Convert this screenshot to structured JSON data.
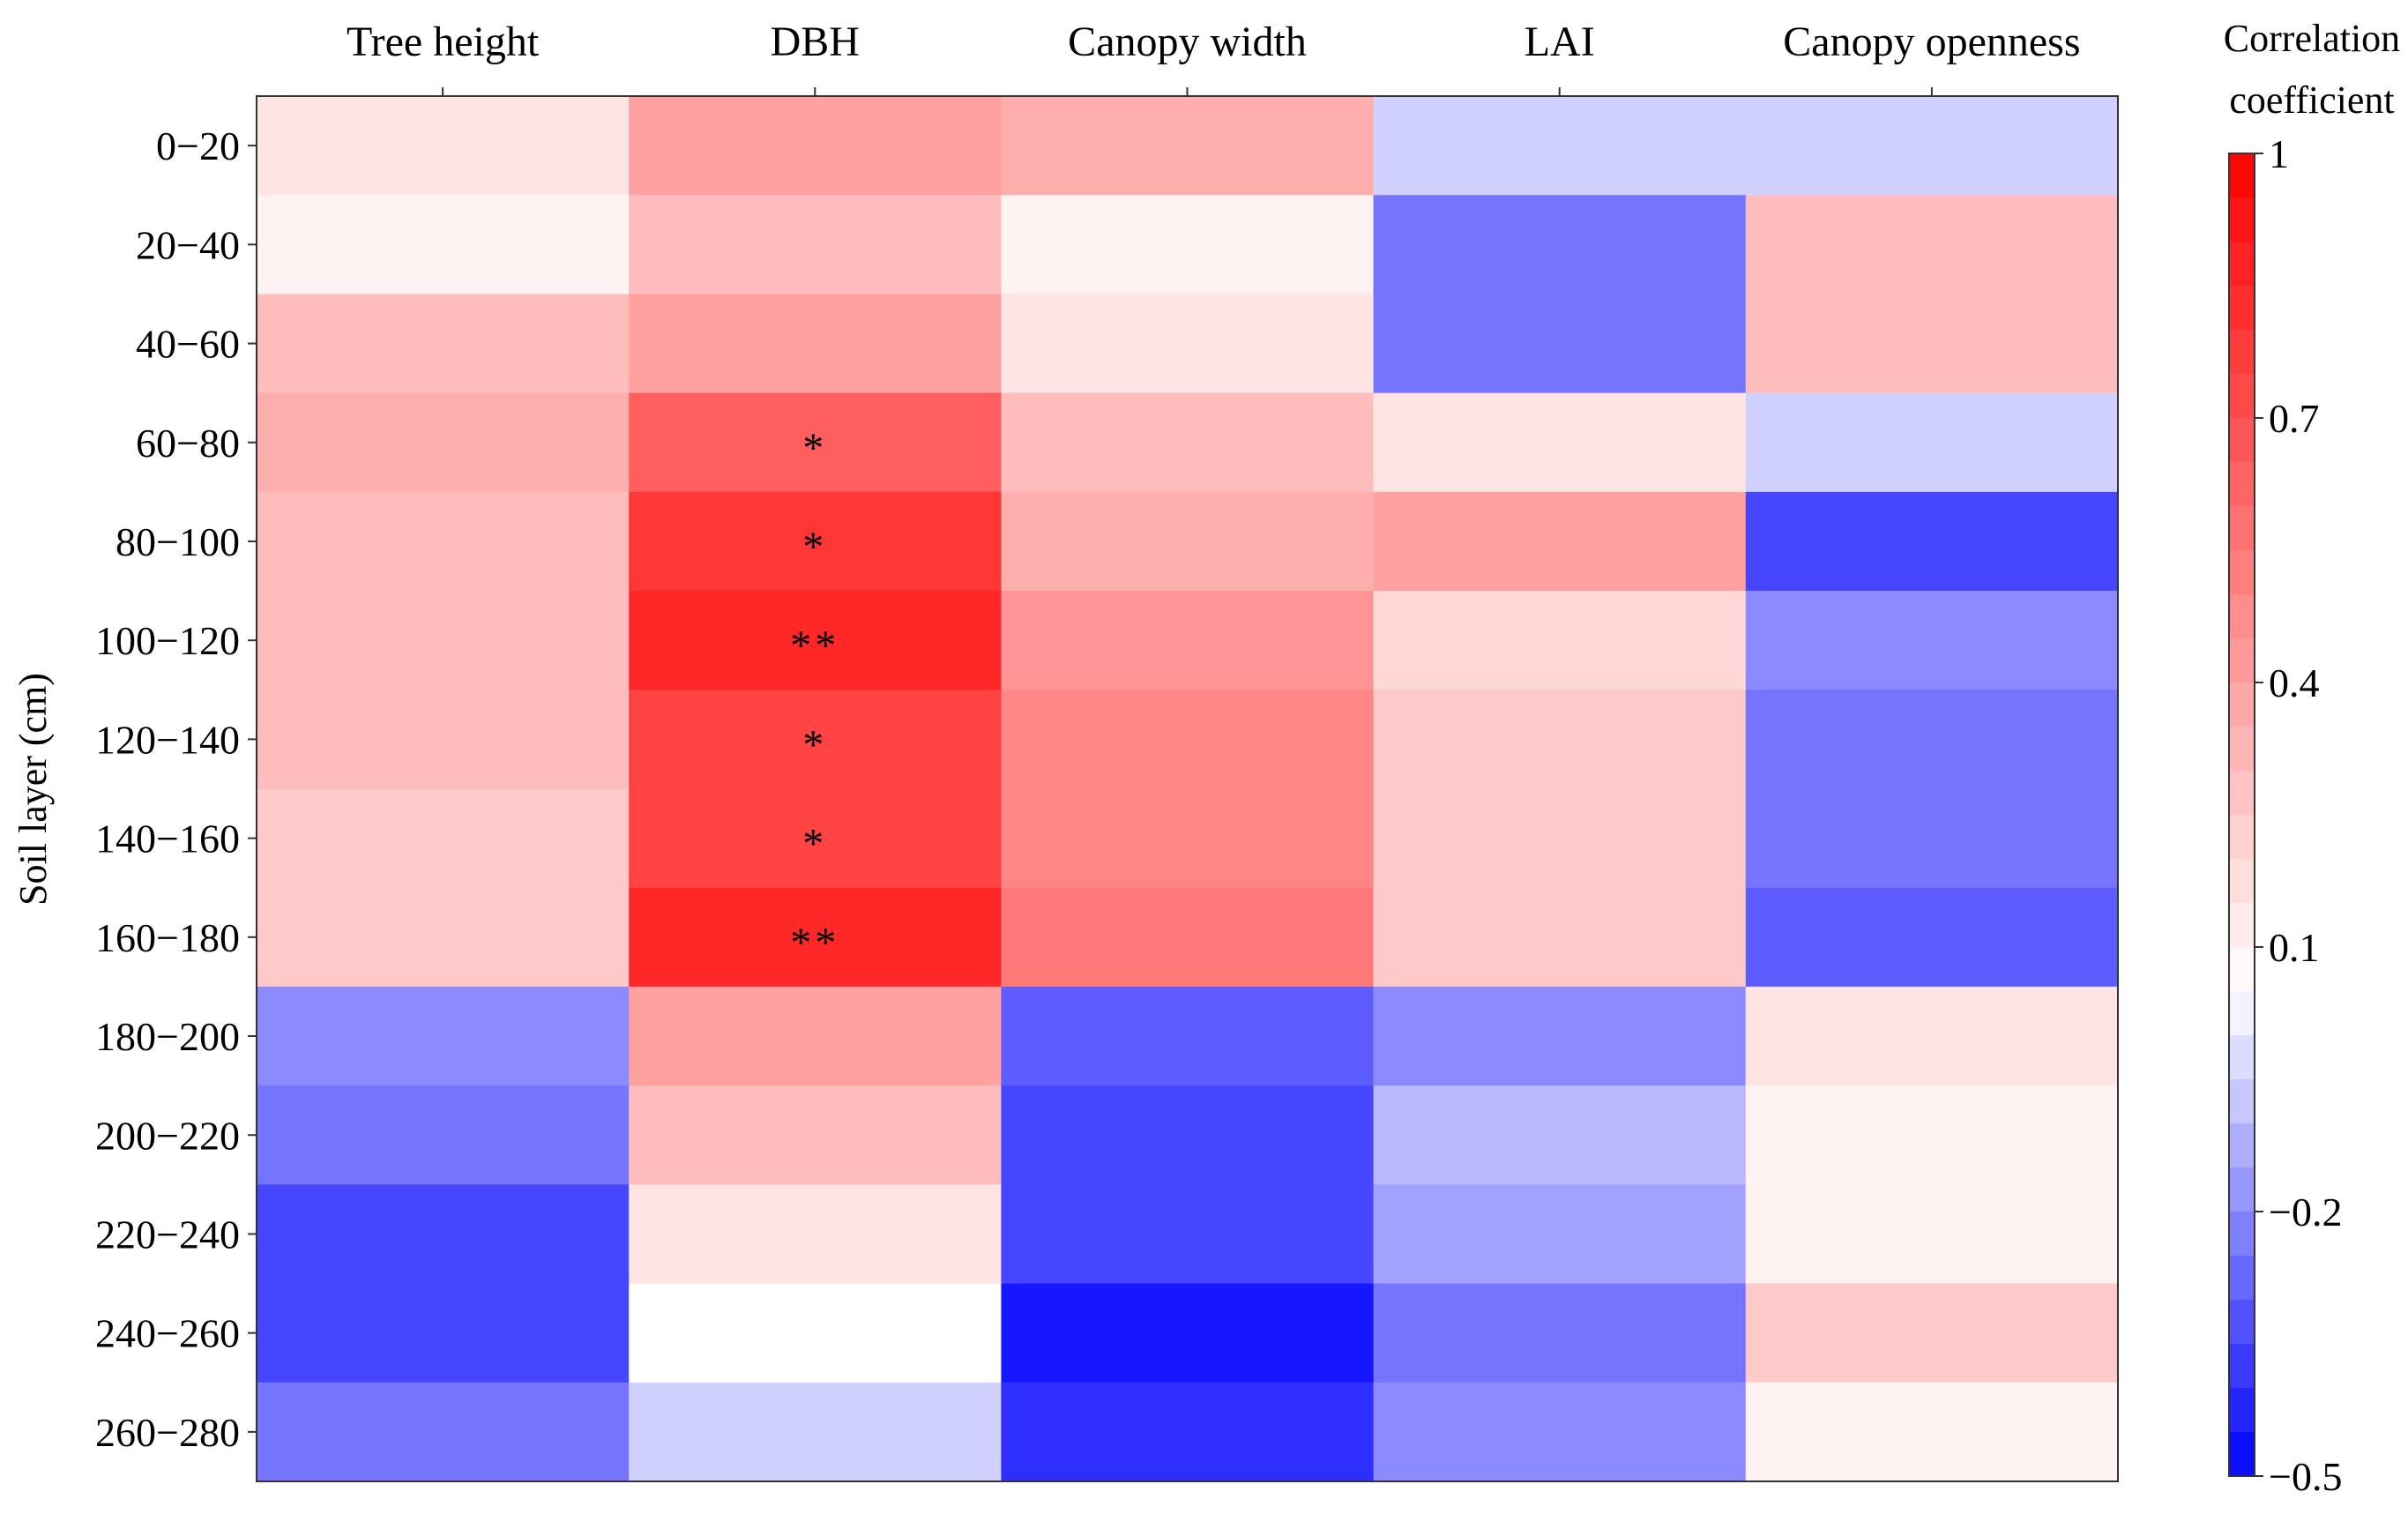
{
  "chart_data": {
    "type": "heatmap",
    "title": "",
    "xlabel": "",
    "ylabel": "Soil layer (cm)",
    "columns": [
      "Tree height",
      "DBH",
      "Canopy width",
      "LAI",
      "Canopy openness"
    ],
    "rows": [
      "0−20",
      "20−40",
      "40−60",
      "60−80",
      "80−100",
      "100−120",
      "120−140",
      "140−160",
      "160−180",
      "180−200",
      "200−220",
      "220−240",
      "240−260",
      "260−280"
    ],
    "values": [
      [
        0.15,
        0.4,
        0.35,
        -0.05,
        -0.05
      ],
      [
        0.1,
        0.3,
        0.1,
        -0.25,
        0.3
      ],
      [
        0.3,
        0.4,
        0.15,
        -0.25,
        0.3
      ],
      [
        0.35,
        0.65,
        0.3,
        0.15,
        -0.05
      ],
      [
        0.3,
        0.8,
        0.35,
        0.4,
        -0.35
      ],
      [
        0.3,
        0.85,
        0.45,
        0.2,
        -0.2
      ],
      [
        0.3,
        0.75,
        0.5,
        0.25,
        -0.25
      ],
      [
        0.25,
        0.75,
        0.5,
        0.25,
        -0.25
      ],
      [
        0.25,
        0.85,
        0.55,
        0.25,
        -0.3
      ],
      [
        -0.2,
        0.4,
        -0.3,
        -0.2,
        0.15
      ],
      [
        -0.25,
        0.3,
        -0.35,
        -0.1,
        0.1
      ],
      [
        -0.35,
        0.15,
        -0.35,
        -0.15,
        0.1
      ],
      [
        -0.35,
        0.05,
        -0.45,
        -0.25,
        0.25
      ],
      [
        -0.25,
        -0.05,
        -0.4,
        -0.2,
        0.1
      ]
    ],
    "significance": [
      [
        "",
        "",
        "",
        "",
        ""
      ],
      [
        "",
        "",
        "",
        "",
        ""
      ],
      [
        "",
        "",
        "",
        "",
        ""
      ],
      [
        "",
        "*",
        "",
        "",
        ""
      ],
      [
        "",
        "*",
        "",
        "",
        ""
      ],
      [
        "",
        "**",
        "",
        "",
        ""
      ],
      [
        "",
        "*",
        "",
        "",
        ""
      ],
      [
        "",
        "*",
        "",
        "",
        ""
      ],
      [
        "",
        "**",
        "",
        "",
        ""
      ],
      [
        "",
        "",
        "",
        "",
        ""
      ],
      [
        "",
        "",
        "",
        "",
        ""
      ],
      [
        "",
        "",
        "",
        "",
        ""
      ],
      [
        "",
        "",
        "",
        "",
        ""
      ],
      [
        "",
        "",
        "",
        "",
        ""
      ]
    ],
    "colorbar": {
      "label": "Correlation coefficient",
      "label_lines": [
        "Correlation",
        "coefficient"
      ],
      "min": -0.5,
      "max": 1,
      "ticks": [
        "1",
        "0.7",
        "0.4",
        "0.1",
        "−0.2",
        "−0.5"
      ],
      "tick_values": [
        1,
        0.7,
        0.4,
        0.1,
        -0.2,
        -0.5
      ]
    },
    "colors": {
      "negative": "#0000ff",
      "neutral": "#ffffff",
      "positive": "#ff0000"
    },
    "grid": false,
    "legend": "right"
  }
}
